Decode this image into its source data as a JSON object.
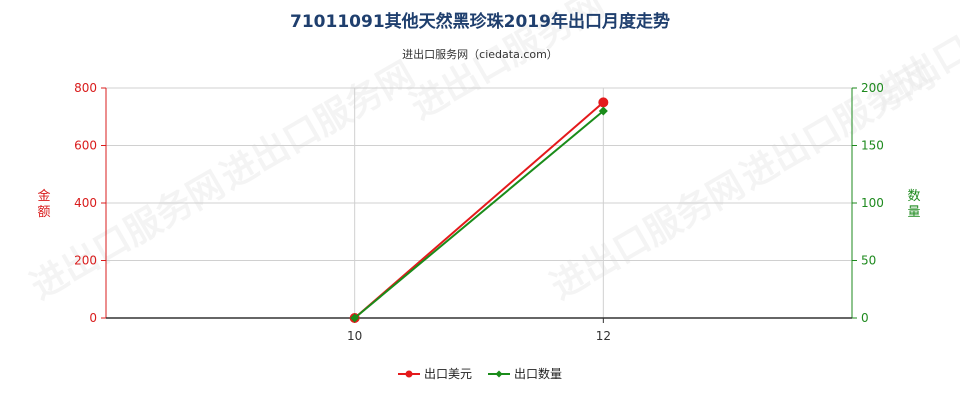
{
  "title": "71011091其他天然黑珍珠2019年出口月度走势",
  "subtitle": "进出口服务网（ciedata.com）",
  "watermark": "进出口服务网",
  "colors": {
    "left_axis": "#d91c1c",
    "right_axis": "#1e8a1e",
    "series_usd": "#e41a1c",
    "series_qty": "#1a8c1a",
    "grid": "#d0d0d0",
    "title": "#1f3f6e"
  },
  "chart_data": {
    "type": "line",
    "x": [
      10,
      12
    ],
    "x_tick_labels": [
      "10",
      "12"
    ],
    "x_range": [
      8,
      14
    ],
    "y_left": {
      "label": "金额",
      "range": [
        0,
        800
      ],
      "ticks": [
        0,
        200,
        400,
        600,
        800
      ],
      "tick_labels": [
        "0",
        "200",
        "400",
        "600",
        "800"
      ]
    },
    "y_right": {
      "label": "数量",
      "range": [
        0,
        200
      ],
      "ticks": [
        0,
        50,
        100,
        150,
        200
      ],
      "tick_labels": [
        "0",
        "50",
        "100",
        "150",
        "200"
      ]
    },
    "series": [
      {
        "name": "出口美元",
        "axis": "left",
        "marker": "circle",
        "values": [
          0,
          750
        ]
      },
      {
        "name": "出口数量",
        "axis": "right",
        "marker": "diamond",
        "values": [
          0,
          180
        ]
      }
    ],
    "grid": true,
    "legend_position": "bottom"
  }
}
